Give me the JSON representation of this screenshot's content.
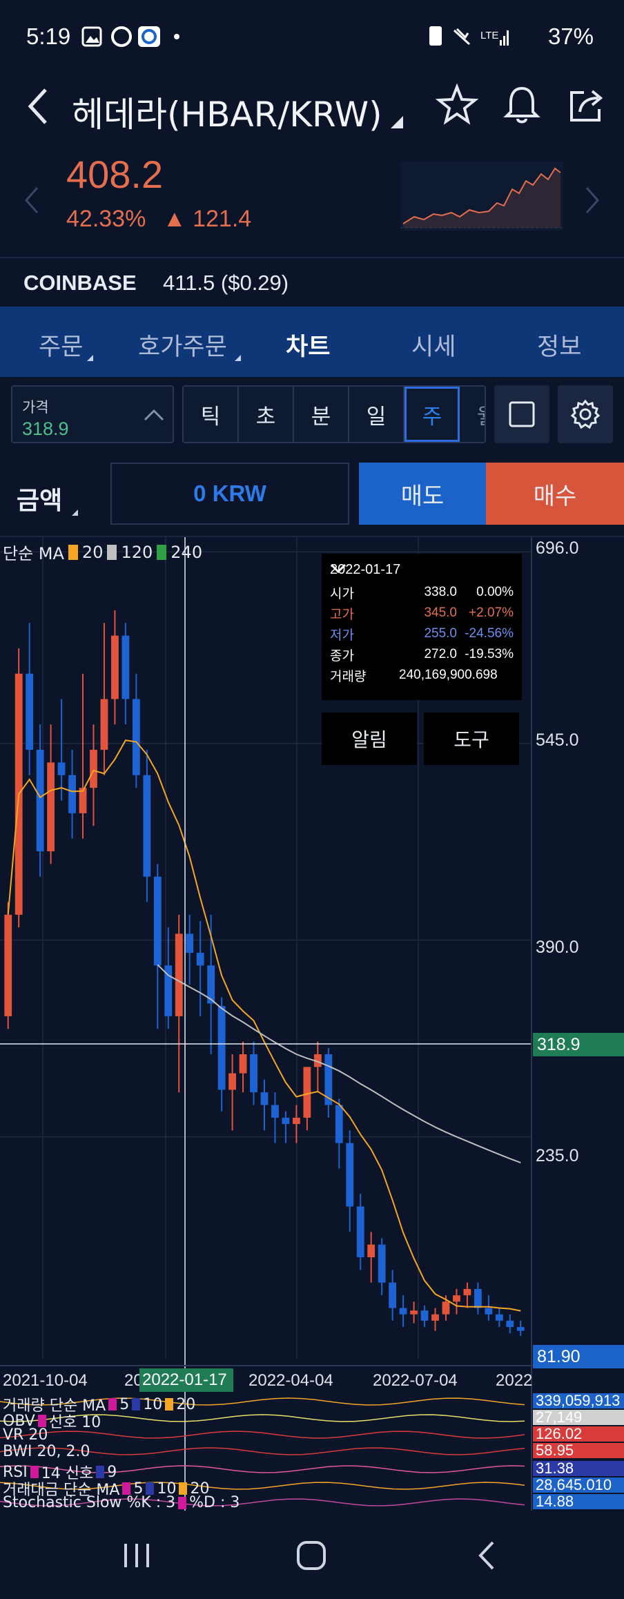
{
  "status_bar": {
    "time": "5:19",
    "battery": "37%"
  },
  "header": {
    "title": "헤데라(HBAR/KRW)"
  },
  "price": {
    "current": "408.2",
    "change_pct": "42.33%",
    "change_amt": "▲ 121.4"
  },
  "exchange": {
    "name": "COINBASE",
    "price": "411.5 ($0.29)"
  },
  "tabs": [
    {
      "label": "주문"
    },
    {
      "label": "호가주문"
    },
    {
      "label": "차트"
    },
    {
      "label": "시세"
    },
    {
      "label": "정보"
    }
  ],
  "toolbar": {
    "price_label": "가격",
    "price_value": "318.9",
    "intervals": [
      "틱",
      "초",
      "분",
      "일",
      "주",
      "월"
    ],
    "selected_interval": "주"
  },
  "order": {
    "amount_label": "금액",
    "amount_value": "0 KRW",
    "sell_label": "매도",
    "buy_label": "매수"
  },
  "chart": {
    "ma_legend_label": "단순 MA",
    "ma_periods": [
      "20",
      "120",
      "240"
    ],
    "ma_colors": [
      "#f5a623",
      "#bfbfbf",
      "#2ea043"
    ],
    "y_ticks": [
      "696.0",
      "545.0",
      "390.0",
      "235.0"
    ],
    "crosshair_price": "318.9",
    "last_price": "81.90",
    "x_ticks": [
      "2021-10-04",
      "20",
      "2022-04-04",
      "2022-07-04",
      "2022"
    ],
    "crosshair_date": "2022-01-17",
    "tooltip": {
      "date": "2022-01-17",
      "rows": [
        {
          "label": "시가",
          "value": "338.0",
          "pct": "0.00%",
          "color": "#ffffff"
        },
        {
          "label": "고가",
          "value": "345.0",
          "pct": "+2.07%",
          "color": "#e56e4e"
        },
        {
          "label": "저가",
          "value": "255.0",
          "pct": "-24.56%",
          "color": "#6c8ff0"
        },
        {
          "label": "종가",
          "value": "272.0",
          "pct": "-19.53%",
          "color": "#ffffff"
        },
        {
          "label": "거래량",
          "value": "240,169,900.698",
          "pct": "",
          "color": "#ffffff"
        }
      ],
      "alert_button": "알림",
      "tools_button": "도구"
    }
  },
  "chart_data": {
    "type": "candlestick",
    "title": "",
    "xlabel": "",
    "ylabel": "",
    "ylim": [
      60,
      700
    ],
    "x_tick_labels": [
      "2021-10-04",
      "2022-01-17",
      "2022-04-04",
      "2022-07-04"
    ],
    "candles": [
      [
        330,
        420,
        320,
        410
      ],
      [
        410,
        620,
        400,
        600
      ],
      [
        600,
        640,
        520,
        540
      ],
      [
        540,
        560,
        440,
        460
      ],
      [
        460,
        560,
        450,
        530
      ],
      [
        530,
        580,
        500,
        520
      ],
      [
        520,
        540,
        470,
        490
      ],
      [
        490,
        600,
        470,
        510
      ],
      [
        510,
        560,
        480,
        540
      ],
      [
        540,
        640,
        520,
        580
      ],
      [
        580,
        650,
        560,
        630
      ],
      [
        630,
        640,
        560,
        580
      ],
      [
        580,
        600,
        510,
        520
      ],
      [
        520,
        540,
        420,
        440
      ],
      [
        440,
        450,
        320,
        370
      ],
      [
        370,
        400,
        320,
        330
      ],
      [
        330,
        410,
        270,
        395
      ],
      [
        395,
        410,
        355,
        380
      ],
      [
        380,
        405,
        330,
        370
      ],
      [
        370,
        410,
        300,
        340
      ],
      [
        338,
        345,
        255,
        272
      ],
      [
        272,
        300,
        240,
        285
      ],
      [
        285,
        310,
        270,
        300
      ],
      [
        300,
        310,
        260,
        270
      ],
      [
        270,
        280,
        240,
        260
      ],
      [
        260,
        270,
        230,
        250
      ],
      [
        250,
        255,
        230,
        245
      ],
      [
        245,
        260,
        230,
        250
      ],
      [
        250,
        290,
        240,
        290
      ],
      [
        290,
        310,
        270,
        300
      ],
      [
        300,
        305,
        250,
        260
      ],
      [
        260,
        265,
        210,
        230
      ],
      [
        230,
        240,
        160,
        180
      ],
      [
        180,
        190,
        130,
        140
      ],
      [
        140,
        160,
        120,
        150
      ],
      [
        150,
        155,
        110,
        120
      ],
      [
        120,
        130,
        90,
        100
      ],
      [
        100,
        110,
        85,
        95
      ],
      [
        95,
        105,
        88,
        98
      ],
      [
        98,
        102,
        85,
        90
      ],
      [
        90,
        100,
        82,
        95
      ],
      [
        95,
        110,
        90,
        105
      ],
      [
        105,
        115,
        95,
        110
      ],
      [
        110,
        120,
        100,
        115
      ],
      [
        115,
        120,
        95,
        100
      ],
      [
        100,
        110,
        90,
        95
      ],
      [
        95,
        100,
        85,
        90
      ],
      [
        90,
        95,
        80,
        85
      ],
      [
        85,
        90,
        78,
        82
      ]
    ],
    "series": [
      {
        "name": "20",
        "values": []
      },
      {
        "name": "120",
        "values": []
      },
      {
        "name": "240",
        "values": []
      }
    ]
  },
  "indicators": [
    {
      "label": "거래량 단순 MA",
      "params": [
        "5",
        "10",
        "20"
      ],
      "value": "339,059,913",
      "color": "#1b63c9"
    },
    {
      "label": "OBV",
      "params": [
        "신호 10"
      ],
      "value": "27,149",
      "color": "#d0d0d0"
    },
    {
      "label": "VR 20",
      "params": [],
      "value": "126.02",
      "color": "#d93b3b"
    },
    {
      "label": "BWI 20, 2.0",
      "params": [],
      "value": "58.95",
      "color": "#d93b3b"
    },
    {
      "label": "RSI",
      "params": [
        "14 신호",
        "9"
      ],
      "value": "31.38",
      "color": "#2c3aa8"
    },
    {
      "label": "거래대금 단순 MA",
      "params": [
        "5",
        "10",
        "20"
      ],
      "value": "28,645.010",
      "color": "#1b63c9"
    },
    {
      "label": "Stochastic Slow %K : 3",
      "params": [
        "%D : 3"
      ],
      "value": "14.88",
      "color": "#1b63c9"
    }
  ]
}
